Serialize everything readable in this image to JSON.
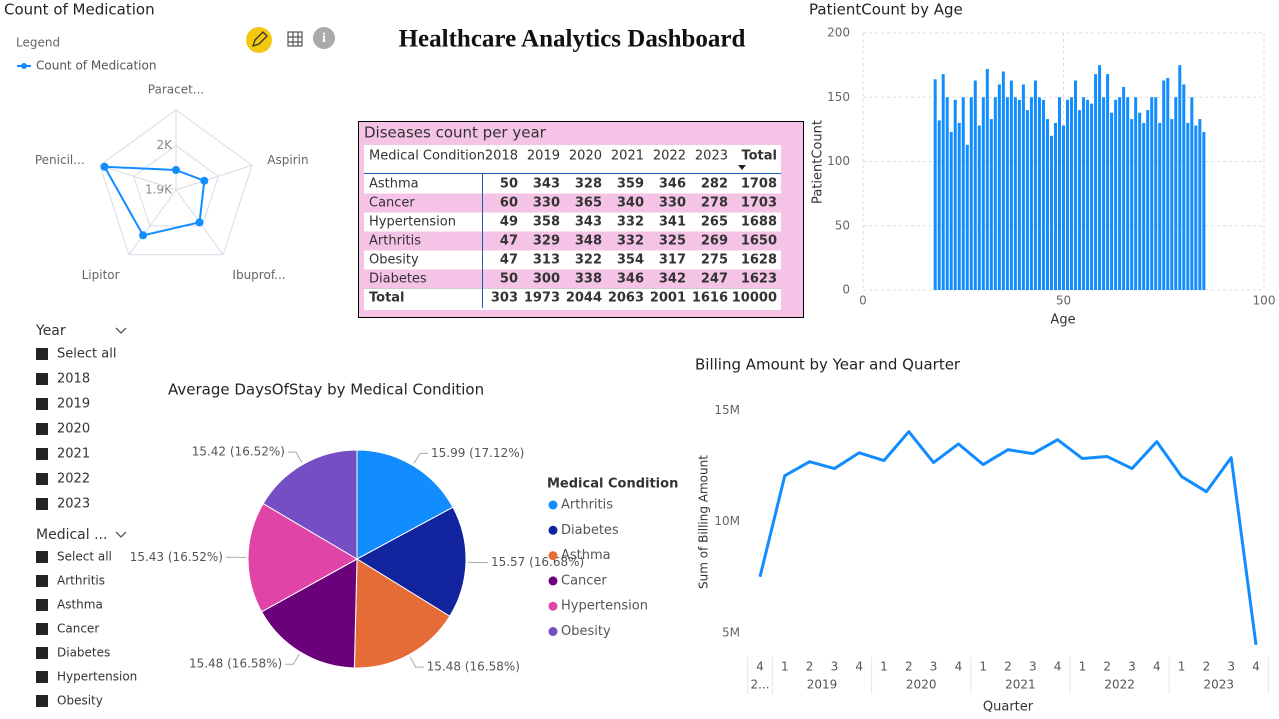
{
  "title": "Healthcare Analytics Dashboard",
  "chart_data": [
    {
      "type": "radar",
      "title": "Count of Medication",
      "legend_title": "Legend",
      "categories": [
        "Paracet...",
        "Aspirin",
        "Ibuprof...",
        "Lipitor",
        "Penicil..."
      ],
      "series": [
        {
          "name": "Count of Medication",
          "color": "#118DFF",
          "values": [
            1945,
            1967,
            1990,
            2026,
            2069
          ]
        }
      ],
      "rlim": [
        1900,
        2080
      ],
      "rticks": [
        {
          "value": 1900,
          "label": "1.9K"
        },
        {
          "value": 2000,
          "label": "2K"
        }
      ]
    },
    {
      "type": "bar",
      "title": "PatientCount by Age",
      "xlabel": "Age",
      "ylabel": "PatientCount",
      "color": "#118DFF",
      "x": [
        18,
        19,
        20,
        21,
        22,
        23,
        24,
        25,
        26,
        27,
        28,
        29,
        30,
        31,
        32,
        33,
        34,
        35,
        36,
        37,
        38,
        39,
        40,
        41,
        42,
        43,
        44,
        45,
        46,
        47,
        48,
        49,
        50,
        51,
        52,
        53,
        54,
        55,
        56,
        57,
        58,
        59,
        60,
        61,
        62,
        63,
        64,
        65,
        66,
        67,
        68,
        69,
        70,
        71,
        72,
        73,
        74,
        75,
        76,
        77,
        78,
        79,
        80,
        81,
        82,
        83,
        84,
        85
      ],
      "values": [
        164,
        132,
        168,
        150,
        123,
        148,
        130,
        150,
        113,
        150,
        163,
        128,
        150,
        172,
        133,
        150,
        160,
        170,
        150,
        163,
        150,
        148,
        160,
        140,
        150,
        163,
        150,
        148,
        133,
        120,
        130,
        150,
        128,
        148,
        150,
        163,
        140,
        150,
        148,
        145,
        168,
        175,
        150,
        168,
        138,
        148,
        150,
        158,
        150,
        133,
        150,
        138,
        130,
        140,
        150,
        150,
        130,
        163,
        165,
        133,
        150,
        175,
        160,
        130,
        150,
        128,
        133,
        123
      ],
      "xlim": [
        0,
        100
      ],
      "xticks": [
        0,
        50,
        100
      ],
      "ylim": [
        0,
        200
      ],
      "yticks": [
        0,
        50,
        100,
        150,
        200
      ],
      "grid": true
    },
    {
      "type": "pie",
      "title": "Average DaysOfStay by Medical Condition",
      "legend_title": "Medical Condition",
      "categories": [
        "Arthritis",
        "Diabetes",
        "Asthma",
        "Cancer",
        "Hypertension",
        "Obesity"
      ],
      "values": [
        15.99,
        15.57,
        15.48,
        15.48,
        15.43,
        15.42
      ],
      "value_labels": [
        "15.99 (17.12%)",
        "15.57 (16.68%)",
        "15.48 (16.58%)",
        "15.48 (16.58%)",
        "15.43 (16.52%)",
        "15.42 (16.52%)"
      ],
      "colors": [
        "#118DFF",
        "#12239E",
        "#E66C37",
        "#6B007B",
        "#E044A7",
        "#744EC2"
      ]
    },
    {
      "type": "line",
      "title": "Billing Amount by Year and Quarter",
      "xlabel": "Quarter",
      "ylabel": "Sum of Billing Amount",
      "color": "#118DFF",
      "x_quarter": [
        "4",
        "1",
        "2",
        "3",
        "4",
        "1",
        "2",
        "3",
        "4",
        "1",
        "2",
        "3",
        "4",
        "1",
        "2",
        "3",
        "4",
        "1",
        "2",
        "3",
        "4"
      ],
      "x_year": [
        "2...",
        "2019",
        "2019",
        "2019",
        "2019",
        "2020",
        "2020",
        "2020",
        "2020",
        "2021",
        "2021",
        "2021",
        "2021",
        "2022",
        "2022",
        "2022",
        "2022",
        "2023",
        "2023",
        "2023",
        "2023"
      ],
      "values": [
        7520000,
        12070000,
        12700000,
        12390000,
        13100000,
        12750000,
        14050000,
        12660000,
        13500000,
        12570000,
        13240000,
        13060000,
        13690000,
        12840000,
        12930000,
        12390000,
        13600000,
        12030000,
        11350000,
        12880000,
        4460000
      ],
      "ylim": [
        4000000,
        15250000
      ],
      "yticks": [
        {
          "value": 5000000,
          "label": "5M"
        },
        {
          "value": 10000000,
          "label": "10M"
        },
        {
          "value": 15000000,
          "label": "15M"
        }
      ]
    }
  ],
  "table": {
    "title": "Diseases count per year",
    "header": [
      "Medical Condition",
      "2018",
      "2019",
      "2020",
      "2021",
      "2022",
      "2023",
      "Total"
    ],
    "rows": [
      [
        "Asthma",
        50,
        343,
        328,
        359,
        346,
        282,
        1708
      ],
      [
        "Cancer",
        60,
        330,
        365,
        340,
        330,
        278,
        1703
      ],
      [
        "Hypertension",
        49,
        358,
        343,
        332,
        341,
        265,
        1688
      ],
      [
        "Arthritis",
        47,
        329,
        348,
        332,
        325,
        269,
        1650
      ],
      [
        "Obesity",
        47,
        313,
        322,
        354,
        317,
        275,
        1628
      ],
      [
        "Diabetes",
        50,
        300,
        338,
        346,
        342,
        247,
        1623
      ]
    ],
    "total": [
      "Total",
      303,
      1973,
      2044,
      2063,
      2001,
      1616,
      10000
    ]
  },
  "slicers": [
    {
      "title": "Year",
      "items": [
        "Select all",
        "2018",
        "2019",
        "2020",
        "2021",
        "2022",
        "2023"
      ]
    },
    {
      "title": "Medical ...",
      "items": [
        "Select all",
        "Arthritis",
        "Asthma",
        "Cancer",
        "Diabetes",
        "Hypertension",
        "Obesity"
      ]
    }
  ]
}
